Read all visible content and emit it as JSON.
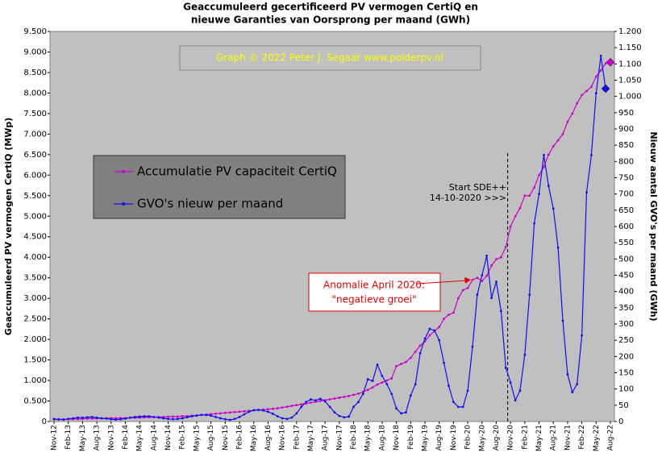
{
  "chart_data": {
    "type": "line",
    "title": [
      "Geaccumuleerd gecertificeerd PV vermogen CertiQ en",
      "nieuwe Garanties van Oorsprong per maand (GWh)"
    ],
    "ylabel": "Geaccumuleerd PV vermogen CertiQ (MWp)",
    "y2label": "Nieuw aantal GVO's per maand (GWh)",
    "annotations": {
      "credit": "Graph © 2022 Peter J. Segaar  www.polderpv.nl",
      "sde": [
        "Start SDE++",
        "14-10-2020  >>>"
      ],
      "anomaly": [
        "Anomalie April 2020:",
        "\"negatieve groei\""
      ]
    },
    "categories": [
      "Nov-12",
      null,
      null,
      "Feb-13",
      null,
      null,
      "May-13",
      null,
      null,
      "Aug-13",
      null,
      null,
      "Nov-13",
      null,
      null,
      "Feb-14",
      null,
      null,
      "May-14",
      null,
      null,
      "Aug-14",
      null,
      null,
      "Nov-14",
      null,
      null,
      "Feb-15",
      null,
      null,
      "May-15",
      null,
      null,
      "Aug-15",
      null,
      null,
      "Nov-15",
      null,
      null,
      "Feb-16",
      null,
      null,
      "May-16",
      null,
      null,
      "Aug-16",
      null,
      null,
      "Nov-16",
      null,
      null,
      "Feb-17",
      null,
      null,
      "May-17",
      null,
      null,
      "Aug-17",
      null,
      null,
      "Nov-17",
      null,
      null,
      "Feb-18",
      null,
      null,
      "May-18",
      null,
      null,
      "Aug-18",
      null,
      null,
      "Nov-18",
      null,
      null,
      "Feb-19",
      null,
      null,
      "May-19",
      null,
      null,
      "Aug-19",
      null,
      null,
      "Nov-19",
      null,
      null,
      "Feb-20",
      null,
      null,
      "May-20",
      null,
      null,
      "Aug-20",
      null,
      null,
      "Nov-20",
      null,
      null,
      "Feb-21",
      null,
      null,
      "May-21",
      null,
      null,
      "Aug-21",
      null,
      null,
      "Nov-21",
      null,
      null,
      "Feb-22",
      null,
      null,
      "May-22",
      null,
      null,
      "Aug-22"
    ],
    "series": [
      {
        "name": "Accumulatie PV capaciteit CertiQ",
        "color": "#cc00cc",
        "axis": "y",
        "values": [
          0.05,
          0.05,
          0.05,
          0.055,
          0.06,
          0.06,
          0.065,
          0.07,
          0.07,
          0.075,
          0.075,
          0.08,
          0.08,
          0.08,
          0.085,
          0.085,
          0.09,
          0.09,
          0.095,
          0.1,
          0.1,
          0.105,
          0.11,
          0.11,
          0.115,
          0.12,
          0.12,
          0.13,
          0.13,
          0.14,
          0.15,
          0.16,
          0.17,
          0.18,
          0.19,
          0.2,
          0.21,
          0.22,
          0.23,
          0.24,
          0.25,
          0.26,
          0.27,
          0.28,
          0.29,
          0.3,
          0.31,
          0.32,
          0.34,
          0.36,
          0.38,
          0.4,
          0.42,
          0.44,
          0.46,
          0.48,
          0.5,
          0.52,
          0.54,
          0.56,
          0.58,
          0.6,
          0.62,
          0.65,
          0.68,
          0.72,
          0.77,
          0.83,
          0.9,
          0.95,
          1.0,
          1.05,
          1.35,
          1.4,
          1.45,
          1.55,
          1.7,
          1.85,
          1.95,
          2.1,
          2.2,
          2.3,
          2.5,
          2.6,
          2.65,
          3.0,
          3.2,
          3.25,
          3.45,
          3.5,
          3.42,
          3.55,
          3.8,
          3.95,
          4.0,
          4.25,
          4.75,
          5.0,
          5.2,
          5.5,
          5.5,
          5.7,
          6.0,
          6.2,
          6.5,
          6.7,
          6.85,
          7.0,
          7.3,
          7.5,
          7.75,
          7.95,
          8.05,
          8.15,
          8.4,
          8.55,
          8.72,
          8.75
        ]
      },
      {
        "name": "GVO's nieuw per maand",
        "color": "#1010ee",
        "axis": "y2",
        "values": [
          8,
          7,
          6,
          8,
          10,
          12,
          12,
          13,
          14,
          12,
          10,
          9,
          7,
          6,
          7,
          9,
          12,
          14,
          15,
          16,
          16,
          14,
          12,
          10,
          8,
          7,
          8,
          10,
          13,
          16,
          18,
          20,
          20,
          18,
          14,
          10,
          7,
          5,
          8,
          14,
          22,
          30,
          35,
          36,
          34,
          30,
          24,
          16,
          10,
          8,
          12,
          25,
          45,
          60,
          68,
          65,
          70,
          62,
          45,
          28,
          17,
          13,
          15,
          45,
          60,
          85,
          130,
          125,
          175,
          140,
          115,
          85,
          40,
          25,
          28,
          80,
          115,
          210,
          255,
          285,
          280,
          250,
          180,
          110,
          60,
          45,
          45,
          95,
          230,
          390,
          450,
          510,
          380,
          430,
          340,
          165,
          120,
          65,
          95,
          205,
          390,
          610,
          700,
          820,
          725,
          655,
          535,
          310,
          145,
          90,
          115,
          265,
          705,
          820,
          1010,
          1125,
          1024,
          null
        ]
      }
    ],
    "ylim": [
      0,
      9.5
    ],
    "yticks": [
      0,
      {
        "value": 0.5,
        "label": "0.500"
      },
      {
        "value": 1,
        "label": "1.000"
      },
      {
        "value": 1.5,
        "label": "1.500"
      },
      {
        "value": 2,
        "label": "2.000"
      },
      {
        "value": 2.5,
        "label": "2.500"
      },
      {
        "value": 3,
        "label": "3.000"
      },
      {
        "value": 3.5,
        "label": "3.500"
      },
      {
        "value": 4,
        "label": "4.000"
      },
      {
        "value": 4.5,
        "label": "4.500"
      },
      {
        "value": 5,
        "label": "5.000"
      },
      {
        "value": 5.5,
        "label": "5.500"
      },
      {
        "value": 6,
        "label": "6.000"
      },
      {
        "value": 6.5,
        "label": "6.500"
      },
      {
        "value": 7,
        "label": "7.000"
      },
      {
        "value": 7.5,
        "label": "7.500"
      },
      {
        "value": 8,
        "label": "8.000"
      },
      {
        "value": 8.5,
        "label": "8.500"
      },
      {
        "value": 9,
        "label": "9.000"
      },
      {
        "value": 9.5,
        "label": "9.500"
      }
    ],
    "y2lim": [
      0,
      1200
    ],
    "y2ticks": [
      0,
      50,
      100,
      150,
      200,
      250,
      300,
      350,
      400,
      450,
      500,
      550,
      600,
      650,
      700,
      750,
      800,
      850,
      900,
      950,
      {
        "value": 1000,
        "label": "1.000"
      },
      {
        "value": 1050,
        "label": "1.050"
      },
      {
        "value": 1100,
        "label": "1.100"
      },
      {
        "value": 1150,
        "label": "1.150"
      },
      {
        "value": 1200,
        "label": "1.200"
      }
    ]
  }
}
